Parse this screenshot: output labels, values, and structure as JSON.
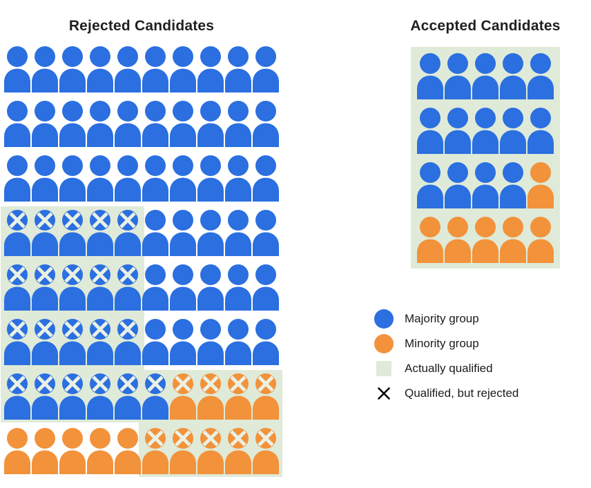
{
  "rejected": {
    "title": "Rejected Candidates",
    "columns": 10,
    "rows": [
      [
        "b",
        "b",
        "b",
        "b",
        "b",
        "b",
        "b",
        "b",
        "b",
        "b"
      ],
      [
        "b",
        "b",
        "b",
        "b",
        "b",
        "b",
        "b",
        "b",
        "b",
        "b"
      ],
      [
        "b",
        "b",
        "b",
        "b",
        "b",
        "b",
        "b",
        "b",
        "b",
        "b"
      ],
      [
        "bx",
        "bx",
        "bx",
        "bx",
        "bx",
        "b",
        "b",
        "b",
        "b",
        "b"
      ],
      [
        "bx",
        "bx",
        "bx",
        "bx",
        "bx",
        "b",
        "b",
        "b",
        "b",
        "b"
      ],
      [
        "bx",
        "bx",
        "bx",
        "bx",
        "bx",
        "b",
        "b",
        "b",
        "b",
        "b"
      ],
      [
        "bx",
        "bx",
        "bx",
        "bx",
        "bx",
        "bx",
        "ox",
        "ox",
        "ox",
        "ox"
      ],
      [
        "o",
        "o",
        "o",
        "o",
        "o",
        "ox",
        "ox",
        "ox",
        "ox",
        "ox"
      ]
    ],
    "qualified_regions": [
      {
        "row_start": 4,
        "row_end": 7,
        "col_start": 1,
        "col_end": 5
      },
      {
        "row_start": 7,
        "row_end": 8,
        "col_start": 6,
        "col_end": 10
      }
    ]
  },
  "accepted": {
    "title": "Accepted Candidates",
    "columns": 5,
    "rows": [
      [
        "b",
        "b",
        "b",
        "b",
        "b"
      ],
      [
        "b",
        "b",
        "b",
        "b",
        "b"
      ],
      [
        "b",
        "b",
        "b",
        "b",
        "o"
      ],
      [
        "o",
        "o",
        "o",
        "o",
        "o"
      ]
    ],
    "qualified_regions": [
      {
        "row_start": 1,
        "row_end": 4,
        "col_start": 1,
        "col_end": 5
      }
    ]
  },
  "legend": {
    "items": [
      {
        "swatch": "circle-majority",
        "label": "Majority group"
      },
      {
        "swatch": "circle-minority",
        "label": "Minority group"
      },
      {
        "swatch": "square-qualified",
        "label": "Actually qualified"
      },
      {
        "swatch": "x-mark",
        "label": "Qualified, but rejected"
      }
    ]
  },
  "colors": {
    "majority": "#2b6fe0",
    "minority": "#f2923b",
    "qualified_bg": "#dfead8",
    "x_on_icon": "#eaf1e4",
    "x_legend": "#000000",
    "title_text": "#1f1f1f"
  }
}
